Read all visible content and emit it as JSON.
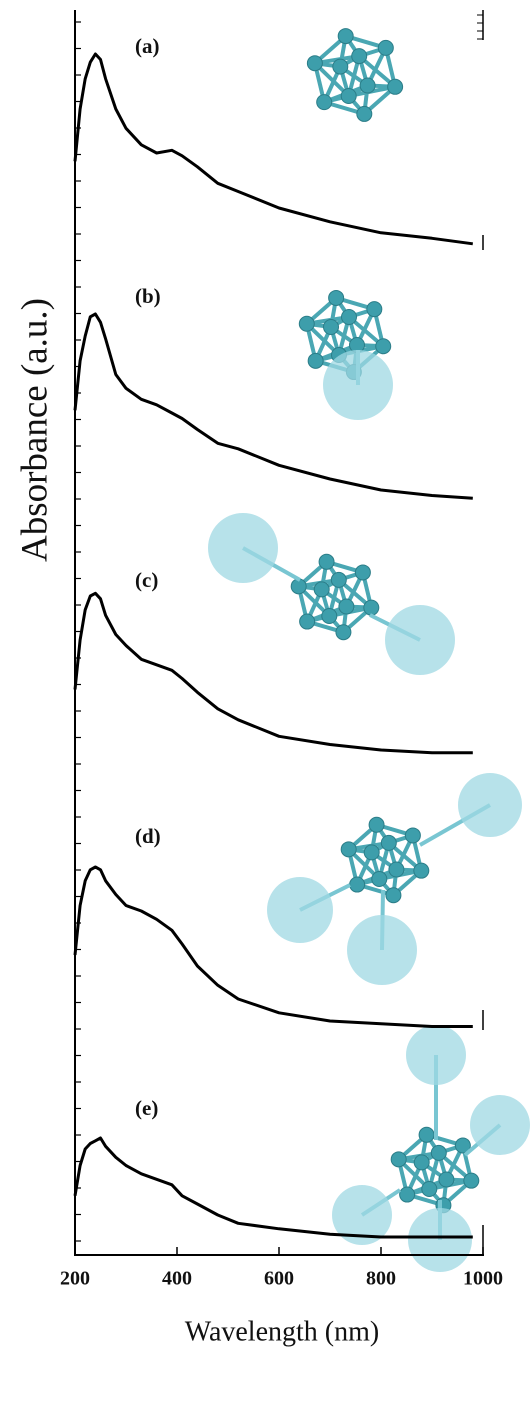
{
  "chart_data": [
    {
      "type": "line",
      "label": "(a)",
      "color": "#000000",
      "xlim": [
        200,
        1000
      ],
      "ylim": [
        0,
        1
      ],
      "x": [
        200,
        210,
        220,
        230,
        240,
        250,
        260,
        280,
        300,
        330,
        360,
        390,
        410,
        440,
        480,
        520,
        600,
        700,
        800,
        900,
        980
      ],
      "values": [
        0.45,
        0.64,
        0.75,
        0.81,
        0.84,
        0.82,
        0.75,
        0.64,
        0.57,
        0.51,
        0.48,
        0.49,
        0.47,
        0.43,
        0.37,
        0.34,
        0.28,
        0.23,
        0.19,
        0.17,
        0.15
      ]
    },
    {
      "type": "line",
      "label": "(b)",
      "color": "#000000",
      "xlim": [
        200,
        1000
      ],
      "ylim": [
        0,
        1
      ],
      "x": [
        200,
        210,
        220,
        230,
        240,
        250,
        260,
        280,
        300,
        330,
        360,
        390,
        410,
        440,
        480,
        520,
        600,
        700,
        800,
        900,
        980
      ],
      "values": [
        0.45,
        0.63,
        0.72,
        0.79,
        0.8,
        0.77,
        0.71,
        0.58,
        0.53,
        0.49,
        0.47,
        0.44,
        0.42,
        0.38,
        0.33,
        0.31,
        0.25,
        0.2,
        0.16,
        0.14,
        0.13
      ]
    },
    {
      "type": "line",
      "label": "(c)",
      "color": "#000000",
      "xlim": [
        200,
        1000
      ],
      "ylim": [
        0,
        1
      ],
      "x": [
        200,
        210,
        220,
        230,
        240,
        250,
        260,
        280,
        300,
        330,
        360,
        390,
        410,
        440,
        480,
        520,
        600,
        700,
        800,
        900,
        980
      ],
      "values": [
        0.34,
        0.52,
        0.63,
        0.68,
        0.69,
        0.67,
        0.61,
        0.54,
        0.5,
        0.45,
        0.43,
        0.41,
        0.38,
        0.33,
        0.27,
        0.23,
        0.17,
        0.14,
        0.12,
        0.11,
        0.11
      ]
    },
    {
      "type": "line",
      "label": "(d)",
      "color": "#000000",
      "xlim": [
        200,
        1000
      ],
      "ylim": [
        0,
        1
      ],
      "x": [
        200,
        210,
        220,
        230,
        240,
        250,
        260,
        280,
        300,
        330,
        360,
        390,
        410,
        440,
        480,
        520,
        600,
        700,
        800,
        900,
        980
      ],
      "values": [
        0.28,
        0.46,
        0.55,
        0.59,
        0.6,
        0.59,
        0.55,
        0.5,
        0.46,
        0.44,
        0.41,
        0.37,
        0.32,
        0.24,
        0.17,
        0.12,
        0.07,
        0.04,
        0.03,
        0.02,
        0.02
      ]
    },
    {
      "type": "line",
      "label": "(e)",
      "color": "#000000",
      "xlim": [
        200,
        1000
      ],
      "ylim": [
        0,
        1
      ],
      "x": [
        200,
        210,
        220,
        230,
        240,
        250,
        260,
        280,
        300,
        330,
        360,
        390,
        410,
        440,
        480,
        520,
        600,
        700,
        800,
        900,
        980
      ],
      "values": [
        0.31,
        0.42,
        0.48,
        0.5,
        0.51,
        0.52,
        0.49,
        0.45,
        0.42,
        0.39,
        0.37,
        0.35,
        0.31,
        0.28,
        0.24,
        0.21,
        0.19,
        0.17,
        0.16,
        0.16,
        0.16
      ],
      "xticks": [
        200,
        400,
        600,
        800,
        1000
      ],
      "xlabel": "Wavelength (nm)",
      "ylabel": "Absorbance (a.u.)"
    }
  ]
}
